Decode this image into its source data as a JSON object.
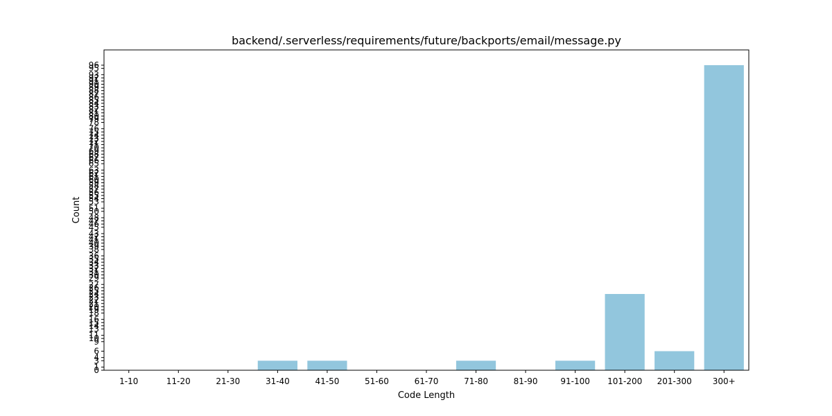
{
  "chart_data": {
    "type": "bar",
    "title": "backend/.serverless/requirements/future/backports/email/message.py",
    "xlabel": "Code Length",
    "ylabel": "Count",
    "categories": [
      "1-10",
      "11-20",
      "21-30",
      "31-40",
      "41-50",
      "51-60",
      "61-70",
      "71-80",
      "81-90",
      "91-100",
      "101-200",
      "201-300",
      "300+"
    ],
    "values": [
      0,
      0,
      0,
      3,
      3,
      0,
      0,
      3,
      0,
      3,
      24,
      6,
      96
    ],
    "ylim": [
      0,
      100.8
    ],
    "yticks": [
      0,
      1,
      3,
      4,
      6,
      9,
      10,
      11,
      13,
      14,
      15,
      16,
      18,
      19,
      20,
      21,
      22,
      23,
      24,
      25,
      26,
      27,
      29,
      30,
      31,
      32,
      33,
      34,
      35,
      36,
      38,
      39,
      40,
      41,
      42,
      43,
      45,
      46,
      47,
      48,
      50,
      51,
      53,
      54,
      55,
      56,
      57,
      58,
      59,
      60,
      61,
      62,
      63,
      65,
      66,
      67,
      68,
      69,
      70,
      71,
      72,
      73,
      74,
      75,
      76,
      78,
      79,
      80,
      81,
      82,
      83,
      84,
      85,
      86,
      87,
      88,
      89,
      90,
      91,
      92,
      93,
      95,
      96
    ],
    "bar_color": "#92c6dd",
    "grid": false,
    "legend": "none"
  }
}
